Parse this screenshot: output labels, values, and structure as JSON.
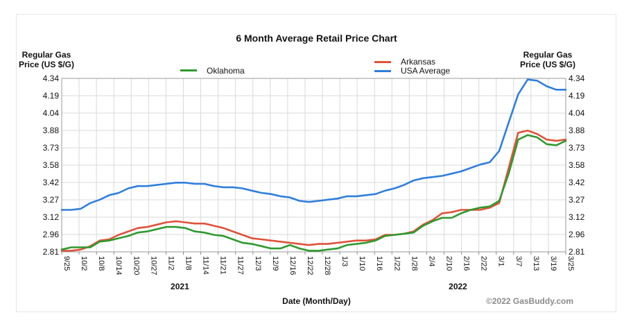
{
  "chart_data": {
    "type": "line",
    "title": "6 Month Average Retail Price Chart",
    "ylabel": "Regular Gas Price (US $/G)",
    "xlabel": "Date (Month/Day)",
    "ylim": [
      2.81,
      4.34
    ],
    "yticks": [
      "4.34",
      "4.19",
      "4.04",
      "3.88",
      "3.73",
      "3.58",
      "3.42",
      "3.27",
      "3.12",
      "2.96",
      "2.81"
    ],
    "xticks": [
      "9/25",
      "10/2",
      "10/8",
      "10/14",
      "10/20",
      "10/27",
      "11/2",
      "11/8",
      "11/14",
      "11/21",
      "11/27",
      "12/3",
      "12/9",
      "12/16",
      "12/22",
      "12/28",
      "1/3",
      "1/10",
      "1/16",
      "1/22",
      "1/28",
      "2/4",
      "2/10",
      "2/16",
      "2/22",
      "3/1",
      "3/7",
      "3/13",
      "3/19",
      "3/25"
    ],
    "years": [
      {
        "label": "2021",
        "at_tick": "11/2"
      },
      {
        "label": "2022",
        "at_tick": "2/10"
      }
    ],
    "copyright": "©2022 GasBuddy.com",
    "series": [
      {
        "name": "Oklahoma",
        "color": "#2e9a2e",
        "values": [
          2.83,
          2.85,
          2.85,
          2.85,
          2.9,
          2.91,
          2.93,
          2.95,
          2.98,
          2.99,
          3.01,
          3.03,
          3.03,
          3.02,
          2.99,
          2.98,
          2.96,
          2.95,
          2.92,
          2.89,
          2.88,
          2.86,
          2.84,
          2.84,
          2.87,
          2.84,
          2.82,
          2.82,
          2.83,
          2.84,
          2.87,
          2.88,
          2.89,
          2.91,
          2.95,
          2.96,
          2.97,
          2.98,
          3.04,
          3.08,
          3.11,
          3.11,
          3.15,
          3.18,
          3.2,
          3.21,
          3.26,
          3.5,
          3.8,
          3.84,
          3.82,
          3.76,
          3.75,
          3.79
        ]
      },
      {
        "name": "Arkansas",
        "color": "#e0523a",
        "values": [
          2.82,
          2.82,
          2.83,
          2.86,
          2.91,
          2.92,
          2.96,
          2.99,
          3.02,
          3.03,
          3.05,
          3.07,
          3.08,
          3.07,
          3.06,
          3.06,
          3.04,
          3.02,
          2.99,
          2.96,
          2.93,
          2.92,
          2.91,
          2.9,
          2.89,
          2.88,
          2.87,
          2.88,
          2.88,
          2.89,
          2.9,
          2.91,
          2.91,
          2.92,
          2.96,
          2.96,
          2.97,
          2.99,
          3.05,
          3.09,
          3.15,
          3.16,
          3.18,
          3.18,
          3.18,
          3.2,
          3.24,
          3.55,
          3.86,
          3.88,
          3.85,
          3.8,
          3.79,
          3.8
        ]
      },
      {
        "name": "USA Average",
        "color": "#2f7fdc",
        "values": [
          3.18,
          3.18,
          3.19,
          3.24,
          3.27,
          3.31,
          3.33,
          3.37,
          3.39,
          3.39,
          3.4,
          3.41,
          3.42,
          3.42,
          3.41,
          3.41,
          3.39,
          3.38,
          3.38,
          3.37,
          3.35,
          3.33,
          3.32,
          3.3,
          3.29,
          3.26,
          3.25,
          3.26,
          3.27,
          3.28,
          3.3,
          3.3,
          3.31,
          3.32,
          3.35,
          3.37,
          3.4,
          3.44,
          3.46,
          3.47,
          3.48,
          3.5,
          3.52,
          3.55,
          3.58,
          3.6,
          3.7,
          3.95,
          4.2,
          4.33,
          4.32,
          4.27,
          4.24,
          4.24
        ]
      }
    ]
  }
}
